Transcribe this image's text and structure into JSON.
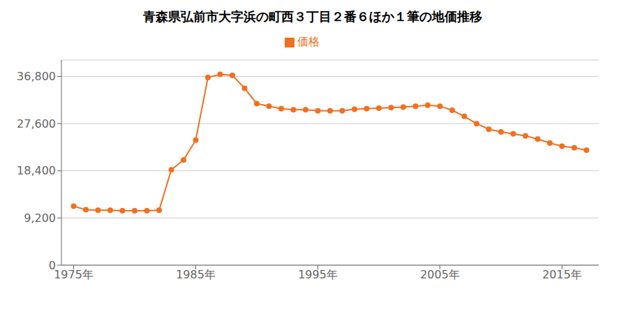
{
  "chart_data": {
    "type": "line",
    "title": "青森県弘前市大字浜の町西３丁目２番６ほか１筆の地価推移",
    "x": [
      1975,
      1976,
      1977,
      1978,
      1979,
      1980,
      1981,
      1982,
      1983,
      1984,
      1985,
      1986,
      1987,
      1988,
      1989,
      1990,
      1991,
      1992,
      1993,
      1994,
      1995,
      1996,
      1997,
      1998,
      1999,
      2000,
      2001,
      2002,
      2003,
      2004,
      2005,
      2006,
      2007,
      2008,
      2009,
      2010,
      2011,
      2012,
      2013,
      2014,
      2015,
      2016,
      2017
    ],
    "series": [
      {
        "name": "価格",
        "color": "#f07020",
        "marker": "circle",
        "values": [
          11500,
          10800,
          10700,
          10700,
          10600,
          10600,
          10600,
          10700,
          18600,
          20500,
          24400,
          36600,
          37200,
          37000,
          34500,
          31500,
          31000,
          30500,
          30300,
          30300,
          30100,
          30100,
          30100,
          30400,
          30500,
          30600,
          30700,
          30800,
          31000,
          31200,
          31000,
          30200,
          29000,
          27600,
          26500,
          26000,
          25600,
          25200,
          24600,
          23800,
          23200,
          22900,
          22400
        ]
      }
    ],
    "xlim": [
      1974,
      2018
    ],
    "xticks": [
      {
        "value": 1975,
        "label": "1975年"
      },
      {
        "value": 1985,
        "label": "1985年"
      },
      {
        "value": 1995,
        "label": "1995年"
      },
      {
        "value": 2005,
        "label": "2005年"
      },
      {
        "value": 2015,
        "label": "2015年"
      }
    ],
    "ylim": [
      0,
      40000
    ],
    "yticks": [
      0,
      {
        "value": 9200,
        "label": "9,200"
      },
      {
        "value": 18400,
        "label": "18,400"
      },
      {
        "value": 27600,
        "label": "27,600"
      },
      {
        "value": 36800,
        "label": "36,800"
      }
    ],
    "grid": "y",
    "legend": "top"
  }
}
